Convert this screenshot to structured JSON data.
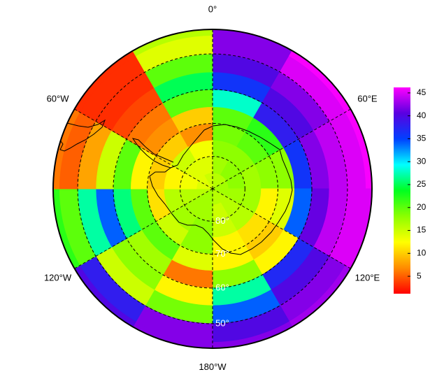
{
  "map": {
    "type": "polar-heatmap",
    "projection": "south-polar-stereographic",
    "lat_edges": [
      -90,
      -85,
      -80,
      -75,
      -70,
      -65,
      -60,
      -55,
      -50,
      -45,
      -43.5
    ],
    "lon_edges": [
      0,
      30,
      60,
      90,
      120,
      150,
      180,
      210,
      240,
      270,
      300,
      330,
      360
    ],
    "values": [
      [
        16,
        16,
        17,
        17,
        16,
        16,
        17,
        17,
        16,
        14,
        14,
        15
      ],
      [
        17,
        18,
        18,
        17,
        16,
        15,
        17,
        17,
        16,
        13,
        14,
        14
      ],
      [
        18,
        18,
        17,
        17,
        16,
        15,
        18,
        17,
        16,
        12,
        15,
        13
      ],
      [
        19,
        20,
        18,
        12,
        11,
        12,
        18,
        15,
        11,
        10,
        10,
        7
      ],
      [
        20,
        22,
        18,
        14,
        10,
        12,
        14,
        20,
        20,
        12,
        7,
        10
      ],
      [
        28,
        38,
        36,
        34,
        12,
        18,
        6,
        17,
        26,
        20,
        6,
        20
      ],
      [
        36,
        40,
        42,
        41,
        37,
        27,
        12,
        18,
        34,
        15,
        4,
        25
      ],
      [
        40,
        42,
        44,
        44,
        40,
        34,
        19,
        15,
        27,
        8,
        3,
        20
      ],
      [
        42,
        45,
        45,
        45,
        42,
        40,
        42,
        38,
        20,
        5,
        3,
        14
      ],
      [
        42,
        46,
        46,
        45,
        43,
        42,
        42,
        40,
        22,
        6,
        3,
        16
      ]
    ],
    "colormap": [
      "#ff0000",
      "#ff8c00",
      "#ffff00",
      "#8cff00",
      "#00ff20",
      "#00ffff",
      "#0040ff",
      "#5a00e0",
      "#ff00ff"
    ],
    "clim": [
      1.2,
      46.2
    ],
    "colorbar_ticks": [
      5,
      10,
      15,
      20,
      25,
      30,
      35,
      40,
      45
    ],
    "meridians": [
      {
        "value": 0,
        "label": "0°"
      },
      {
        "value": 60,
        "label": "60°E"
      },
      {
        "value": 120,
        "label": "120°E"
      },
      {
        "value": 180,
        "label": "180°W"
      },
      {
        "value": 240,
        "label": "120°W"
      },
      {
        "value": 300,
        "label": "60°W"
      }
    ],
    "parallels": [
      {
        "value": -80,
        "label": "80°"
      },
      {
        "value": -70,
        "label": "70°"
      },
      {
        "value": -60,
        "label": "60°"
      },
      {
        "value": -50,
        "label": "50°"
      }
    ]
  }
}
